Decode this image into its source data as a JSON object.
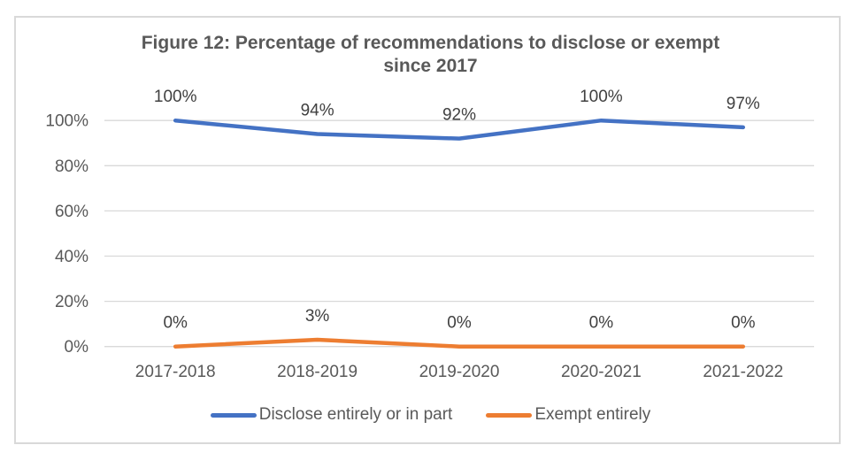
{
  "chart_data": {
    "type": "line",
    "title": "Figure 12: Percentage of recommendations to disclose or exempt since 2017",
    "categories": [
      "2017-2018",
      "2018-2019",
      "2019-2020",
      "2020-2021",
      "2021-2022"
    ],
    "series": [
      {
        "name": "Disclose entirely or in part",
        "color": "#4472C4",
        "values": [
          100,
          94,
          92,
          100,
          97
        ],
        "labels": [
          "100%",
          "94%",
          "92%",
          "100%",
          "97%"
        ]
      },
      {
        "name": "Exempt entirely",
        "color": "#ED7D31",
        "values": [
          0,
          3,
          0,
          0,
          0
        ],
        "labels": [
          "0%",
          "3%",
          "0%",
          "0%",
          "0%"
        ]
      }
    ],
    "y_axis": {
      "min": 0,
      "max": 100,
      "ticks": [
        {
          "label": "100%",
          "value": 100
        },
        {
          "label": "80%",
          "value": 80
        },
        {
          "label": "60%",
          "value": 60
        },
        {
          "label": "40%",
          "value": 40
        },
        {
          "label": "20%",
          "value": 20
        },
        {
          "label": "0%",
          "value": 0
        }
      ]
    },
    "grid": true,
    "legend_position": "bottom"
  },
  "colors": {
    "gridline": "#D9D9D9",
    "frame_border": "#D9D9D9",
    "axis_text": "#595959",
    "title_text": "#595959",
    "data_label_text": "#404040",
    "background": "#FFFFFF"
  }
}
